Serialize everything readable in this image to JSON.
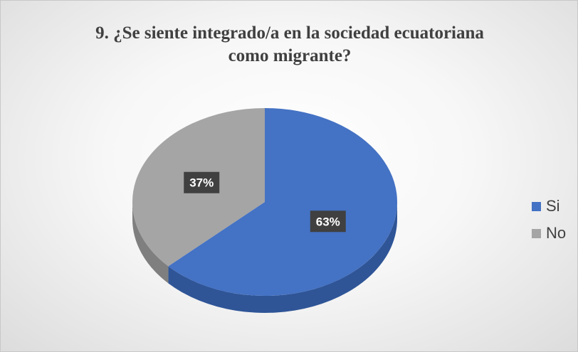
{
  "chart_data": {
    "type": "pie",
    "title_lines": [
      "9. ¿Se siente integrado/a en la sociedad ecuatoriana",
      "como migrante?"
    ],
    "categories": [
      "Si",
      "No"
    ],
    "values": [
      63,
      37
    ],
    "data_labels": [
      "63%",
      "37%"
    ],
    "colors": [
      "#4472C4",
      "#A5A5A5"
    ],
    "side_colors": [
      "#2F5597",
      "#7F7F7F"
    ],
    "style": "3d",
    "legend_position": "right"
  }
}
